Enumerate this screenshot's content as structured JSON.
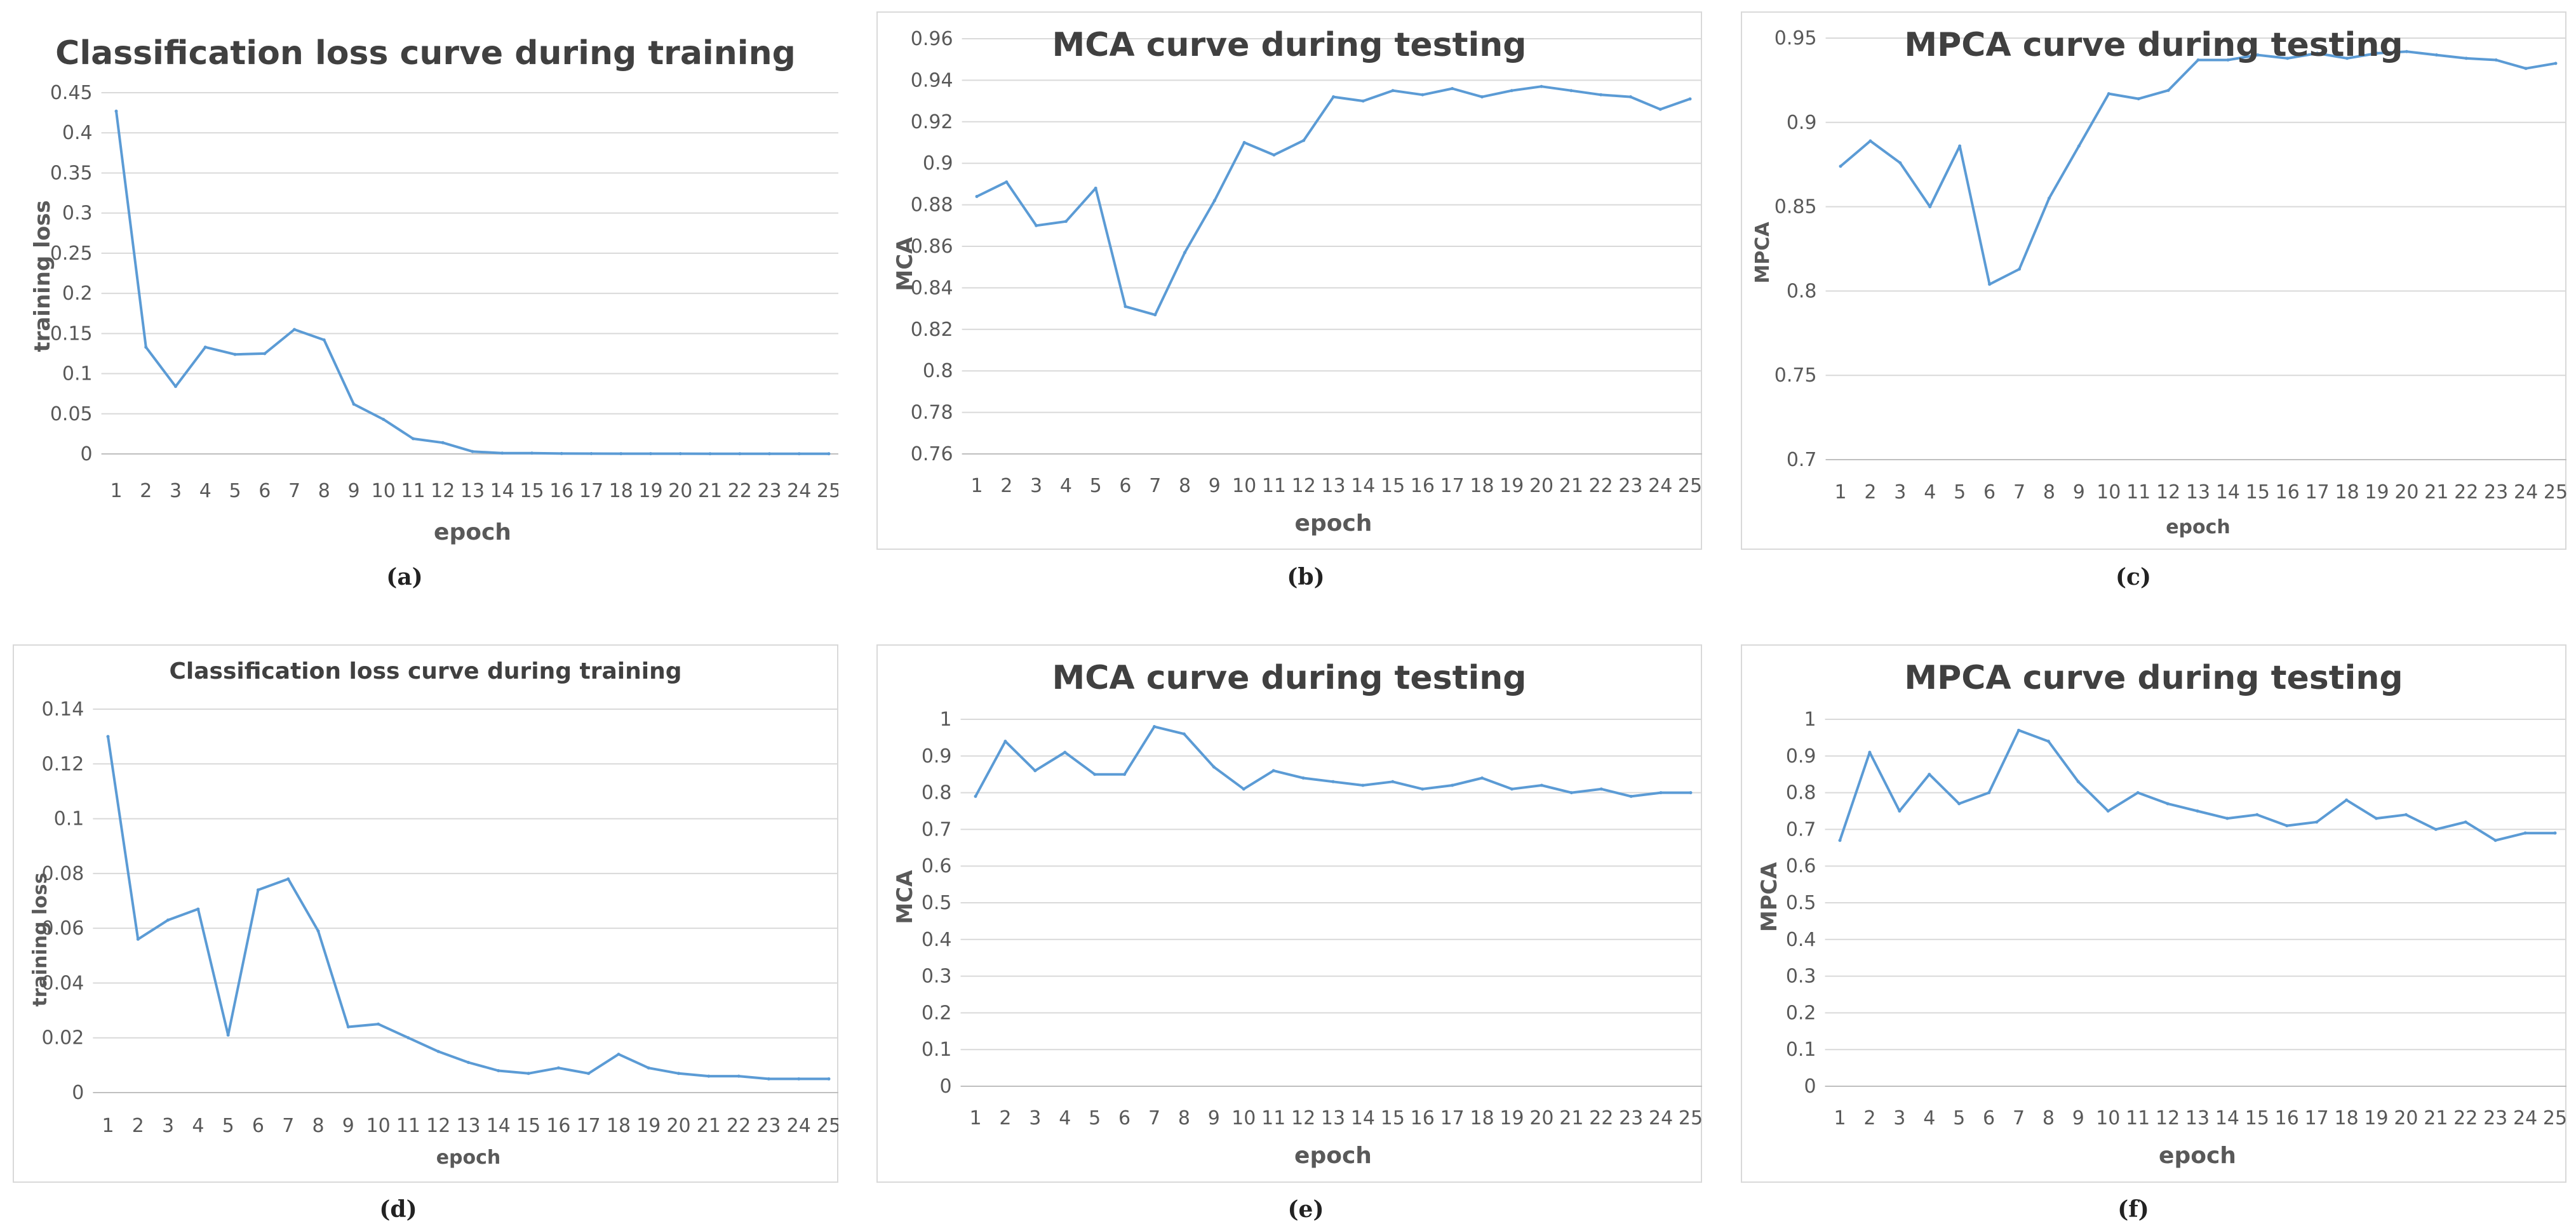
{
  "line_color": "#5B9BD5",
  "grid_color": "#D9D9D9",
  "chart_data": [
    {
      "type": "line",
      "id": "a",
      "caption": "(a)",
      "title": "Classification loss curve during training",
      "xlabel": "epoch",
      "ylabel": "training loss",
      "x": [
        1,
        2,
        3,
        4,
        5,
        6,
        7,
        8,
        9,
        10,
        11,
        12,
        13,
        14,
        15,
        16,
        17,
        18,
        19,
        20,
        21,
        22,
        23,
        24,
        25
      ],
      "y_ticks": [
        "0",
        "0.05",
        "0.1",
        "0.15",
        "0.2",
        "0.25",
        "0.3",
        "0.35",
        "0.4",
        "0.45"
      ],
      "ylim": [
        0,
        0.45
      ],
      "series": [
        {
          "name": "training loss",
          "values": [
            0.427,
            0.133,
            0.084,
            0.133,
            0.124,
            0.125,
            0.155,
            0.142,
            0.062,
            0.043,
            0.019,
            0.014,
            0.003,
            0.001,
            0.001,
            0.0005,
            0.0004,
            0.0003,
            0.0003,
            0.0003,
            0.0002,
            0.0002,
            0.0002,
            0.0002,
            0.0002
          ]
        }
      ]
    },
    {
      "type": "line",
      "id": "b",
      "caption": "(b)",
      "title": "MCA curve during testing",
      "xlabel": "epoch",
      "ylabel": "MCA",
      "x": [
        1,
        2,
        3,
        4,
        5,
        6,
        7,
        8,
        9,
        10,
        11,
        12,
        13,
        14,
        15,
        16,
        17,
        18,
        19,
        20,
        21,
        22,
        23,
        24,
        25
      ],
      "y_ticks": [
        "0.76",
        "0.78",
        "0.8",
        "0.82",
        "0.84",
        "0.86",
        "0.88",
        "0.9",
        "0.92",
        "0.94",
        "0.96"
      ],
      "ylim": [
        0.76,
        0.96
      ],
      "series": [
        {
          "name": "MCA",
          "values": [
            0.884,
            0.891,
            0.87,
            0.872,
            0.888,
            0.831,
            0.827,
            0.857,
            0.882,
            0.91,
            0.904,
            0.911,
            0.932,
            0.93,
            0.935,
            0.933,
            0.936,
            0.932,
            0.935,
            0.937,
            0.935,
            0.933,
            0.932,
            0.926,
            0.931
          ]
        }
      ]
    },
    {
      "type": "line",
      "id": "c",
      "caption": "(c)",
      "title": "MPCA curve during testing",
      "xlabel": "epoch",
      "ylabel": "MPCA",
      "x": [
        1,
        2,
        3,
        4,
        5,
        6,
        7,
        8,
        9,
        10,
        11,
        12,
        13,
        14,
        15,
        16,
        17,
        18,
        19,
        20,
        21,
        22,
        23,
        24,
        25
      ],
      "y_ticks": [
        "0.7",
        "0.75",
        "0.8",
        "0.85",
        "0.9",
        "0.95"
      ],
      "ylim": [
        0.7,
        0.95
      ],
      "series": [
        {
          "name": "MPCA",
          "values": [
            0.874,
            0.889,
            0.876,
            0.85,
            0.886,
            0.804,
            0.813,
            0.855,
            0.886,
            0.917,
            0.914,
            0.919,
            0.937,
            0.937,
            0.94,
            0.938,
            0.941,
            0.938,
            0.941,
            0.942,
            0.94,
            0.938,
            0.937,
            0.932,
            0.935
          ]
        }
      ]
    },
    {
      "type": "line",
      "id": "d",
      "caption": "(d)",
      "title": "Classification loss curve during training",
      "xlabel": "epoch",
      "ylabel": "training loss",
      "x": [
        1,
        2,
        3,
        4,
        5,
        6,
        7,
        8,
        9,
        10,
        11,
        12,
        13,
        14,
        15,
        16,
        17,
        18,
        19,
        20,
        21,
        22,
        23,
        24,
        25
      ],
      "y_ticks": [
        "0",
        "0.02",
        "0.04",
        "0.06",
        "0.08",
        "0.1",
        "0.12",
        "0.14"
      ],
      "ylim": [
        0,
        0.14
      ],
      "series": [
        {
          "name": "training loss",
          "values": [
            0.13,
            0.056,
            0.063,
            0.067,
            0.021,
            0.074,
            0.078,
            0.059,
            0.024,
            0.025,
            0.02,
            0.015,
            0.011,
            0.008,
            0.007,
            0.009,
            0.007,
            0.014,
            0.009,
            0.007,
            0.006,
            0.006,
            0.005,
            0.005,
            0.005
          ]
        }
      ]
    },
    {
      "type": "line",
      "id": "e",
      "caption": "(e)",
      "title": "MCA curve during testing",
      "xlabel": "epoch",
      "ylabel": "MCA",
      "x": [
        1,
        2,
        3,
        4,
        5,
        6,
        7,
        8,
        9,
        10,
        11,
        12,
        13,
        14,
        15,
        16,
        17,
        18,
        19,
        20,
        21,
        22,
        23,
        24,
        25
      ],
      "y_ticks": [
        "0",
        "0.1",
        "0.2",
        "0.3",
        "0.4",
        "0.5",
        "0.6",
        "0.7",
        "0.8",
        "0.9",
        "1"
      ],
      "ylim": [
        0,
        1
      ],
      "series": [
        {
          "name": "MCA",
          "values": [
            0.79,
            0.94,
            0.86,
            0.91,
            0.85,
            0.85,
            0.98,
            0.96,
            0.87,
            0.81,
            0.86,
            0.84,
            0.83,
            0.82,
            0.83,
            0.81,
            0.82,
            0.84,
            0.81,
            0.82,
            0.8,
            0.81,
            0.79,
            0.8,
            0.8
          ]
        }
      ]
    },
    {
      "type": "line",
      "id": "f",
      "caption": "(f)",
      "title": "MPCA curve during testing",
      "xlabel": "epoch",
      "ylabel": "MPCA",
      "x": [
        1,
        2,
        3,
        4,
        5,
        6,
        7,
        8,
        9,
        10,
        11,
        12,
        13,
        14,
        15,
        16,
        17,
        18,
        19,
        20,
        21,
        22,
        23,
        24,
        25
      ],
      "y_ticks": [
        "0",
        "0.1",
        "0.2",
        "0.3",
        "0.4",
        "0.5",
        "0.6",
        "0.7",
        "0.8",
        "0.9",
        "1"
      ],
      "ylim": [
        0,
        1
      ],
      "series": [
        {
          "name": "MPCA",
          "values": [
            0.67,
            0.91,
            0.75,
            0.85,
            0.77,
            0.8,
            0.97,
            0.94,
            0.83,
            0.75,
            0.8,
            0.77,
            0.75,
            0.73,
            0.74,
            0.71,
            0.72,
            0.78,
            0.73,
            0.74,
            0.7,
            0.72,
            0.67,
            0.69,
            0.69
          ]
        }
      ]
    }
  ]
}
